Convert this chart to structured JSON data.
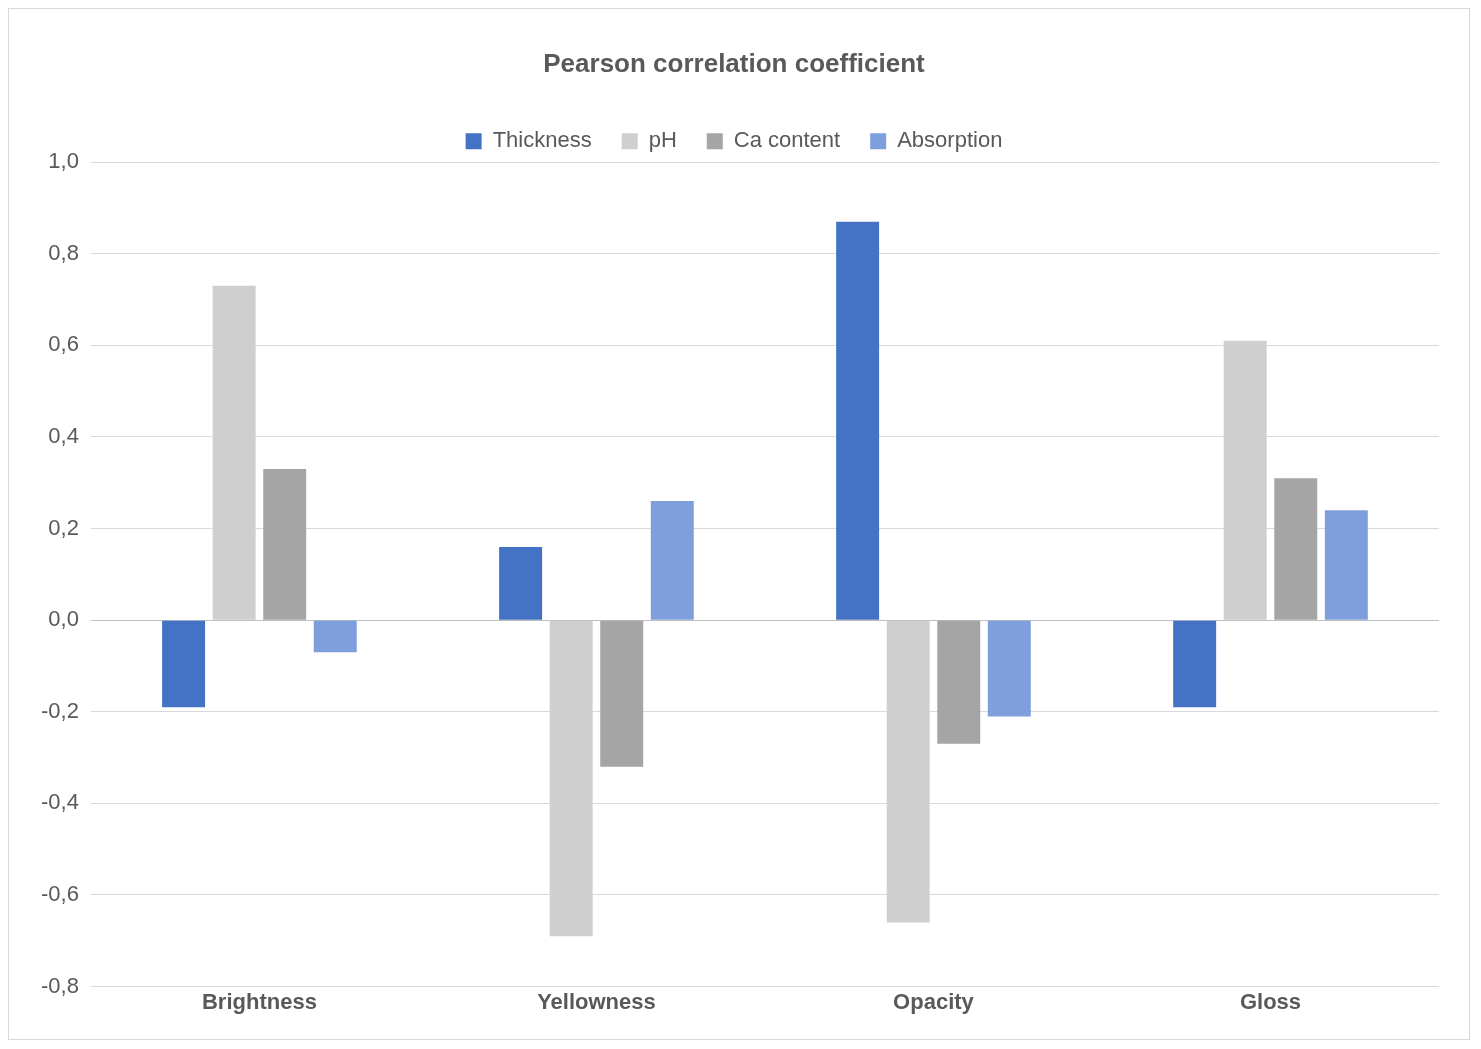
{
  "chart_data": {
    "type": "bar",
    "title": "Pearson correlation coefficient",
    "categories": [
      "Brightness",
      "Yellowness",
      "Opacity",
      "Gloss"
    ],
    "series": [
      {
        "name": "Thickness",
        "color": "#4472c4",
        "values": [
          -0.19,
          0.16,
          0.87,
          -0.19
        ]
      },
      {
        "name": "pH",
        "color": "#cfcfcf",
        "values": [
          0.73,
          -0.69,
          -0.66,
          0.61
        ]
      },
      {
        "name": "Ca content",
        "color": "#a5a5a5",
        "values": [
          0.33,
          -0.32,
          -0.27,
          0.31
        ]
      },
      {
        "name": "Absorption",
        "color": "#7f9fdc",
        "values": [
          -0.07,
          0.26,
          -0.21,
          0.24
        ]
      }
    ],
    "ylim": [
      -0.8,
      1.0
    ],
    "yticks": [
      {
        "value": -0.8,
        "label": "-0,8"
      },
      {
        "value": -0.6,
        "label": "-0,6"
      },
      {
        "value": -0.4,
        "label": "-0,4"
      },
      {
        "value": -0.2,
        "label": "-0,2"
      },
      {
        "value": 0,
        "label": "0,0"
      },
      {
        "value": 0.2,
        "label": "0,2"
      },
      {
        "value": 0.4,
        "label": "0,4"
      },
      {
        "value": 0.6,
        "label": "0,6"
      },
      {
        "value": 0.8,
        "label": "0,8"
      },
      {
        "value": 1.0,
        "label": "1,0"
      }
    ],
    "grid": "y",
    "legend": "top"
  }
}
